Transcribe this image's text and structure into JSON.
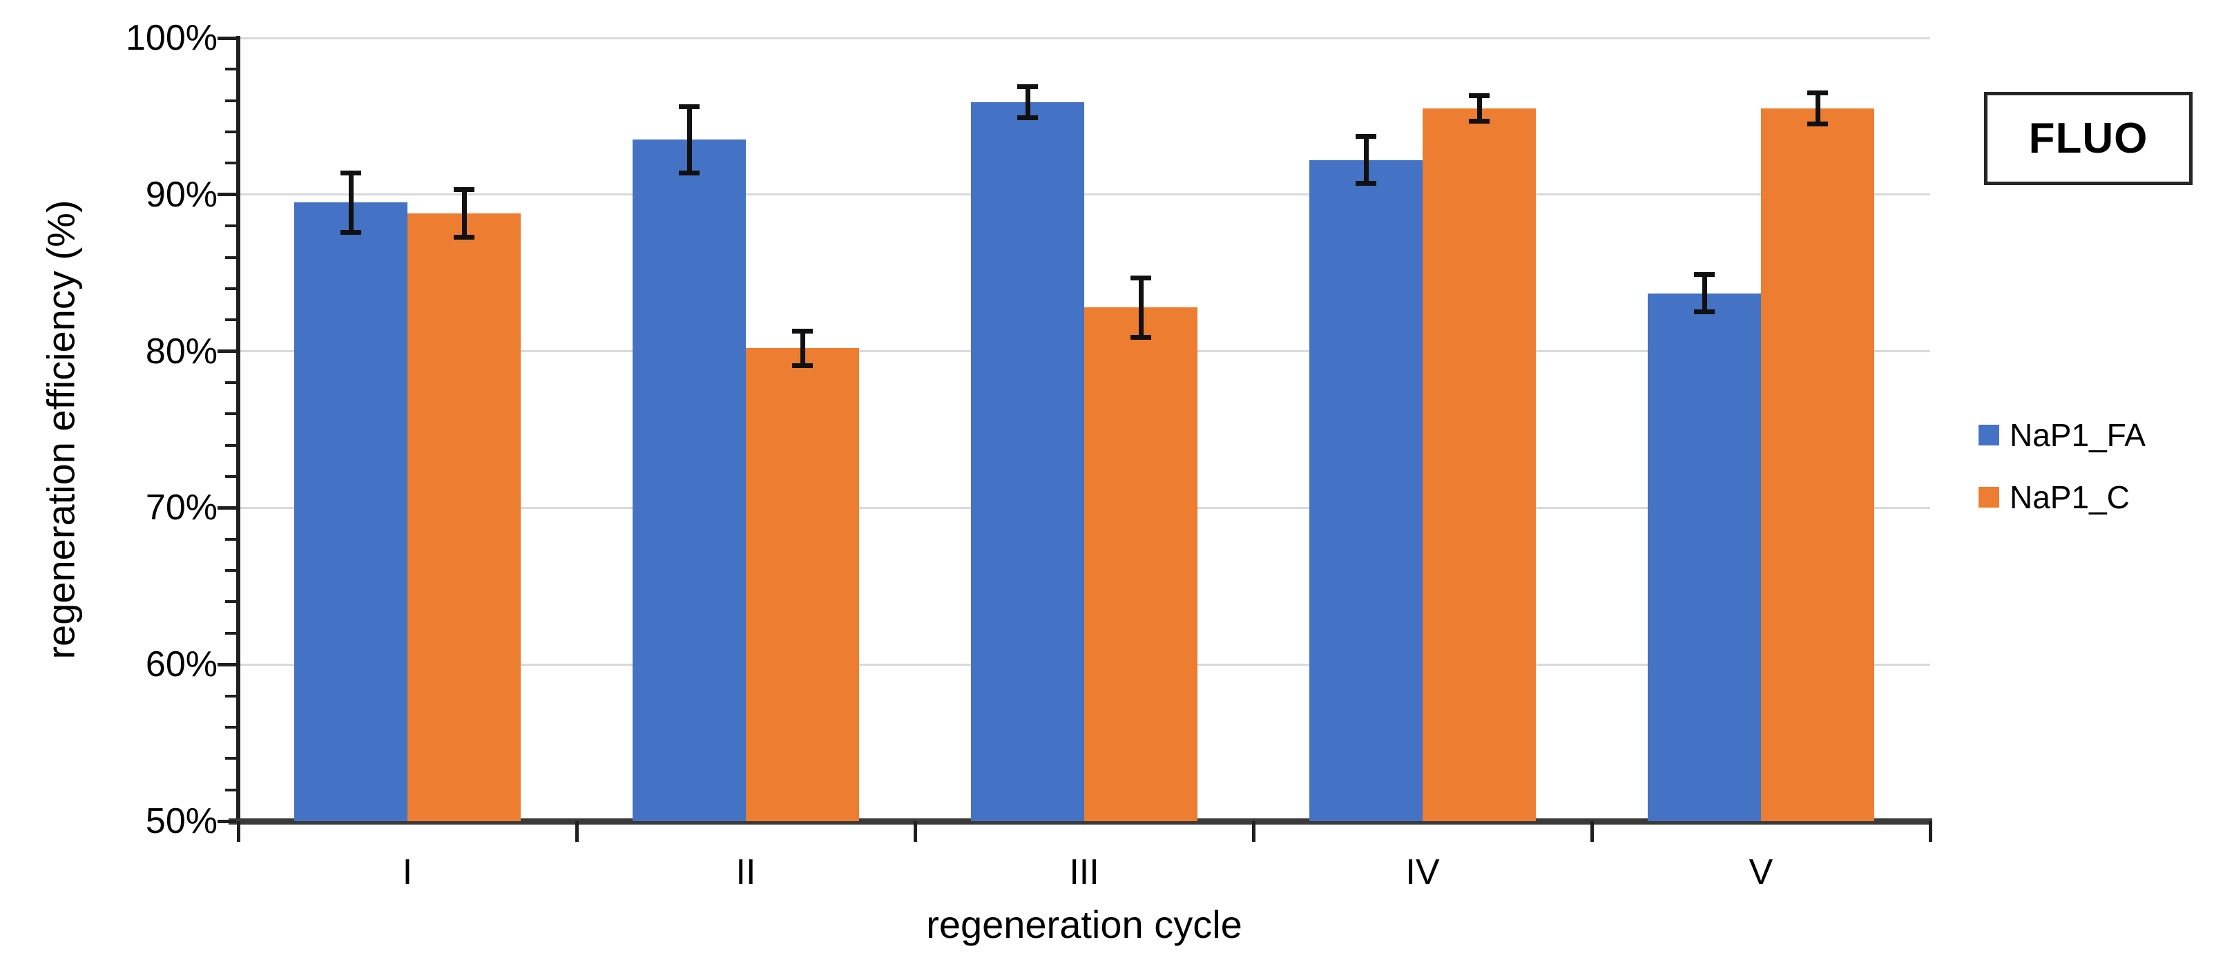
{
  "annotation": {
    "label": "FLUO"
  },
  "colors": {
    "series_fa": "#4472C4",
    "series_c": "#ED7D31",
    "gridline": "#D9D9D9",
    "axis": "#1F1F1F",
    "baseline": "#3A3A3A",
    "error_bar": "#111111"
  },
  "legend": {
    "items": [
      {
        "label": "NaP1_FA",
        "color": "#4472C4"
      },
      {
        "label": "NaP1_C",
        "color": "#ED7D31"
      }
    ]
  },
  "chart_data": {
    "type": "bar",
    "title": "",
    "xlabel": "regeneration cycle",
    "ylabel": "regeneration efficiency (%)",
    "categories": [
      "I",
      "II",
      "III",
      "IV",
      "V"
    ],
    "series": [
      {
        "name": "NaP1_FA",
        "color": "#4472C4",
        "values": [
          89.5,
          93.5,
          95.9,
          92.2,
          83.7
        ],
        "errors": [
          1.9,
          2.1,
          1.0,
          1.5,
          1.2
        ]
      },
      {
        "name": "NaP1_C",
        "color": "#ED7D31",
        "values": [
          88.8,
          80.2,
          82.8,
          95.5,
          95.5
        ],
        "errors": [
          1.5,
          1.1,
          1.9,
          0.8,
          1.0
        ]
      }
    ],
    "ylim": [
      50,
      100
    ],
    "ytick_labels": [
      "50%",
      "60%",
      "70%",
      "80%",
      "90%",
      "100%"
    ],
    "ytick_step_major": 10,
    "ytick_step_minor": 2,
    "grid": true,
    "error_bars": true,
    "legend_position": "right"
  }
}
